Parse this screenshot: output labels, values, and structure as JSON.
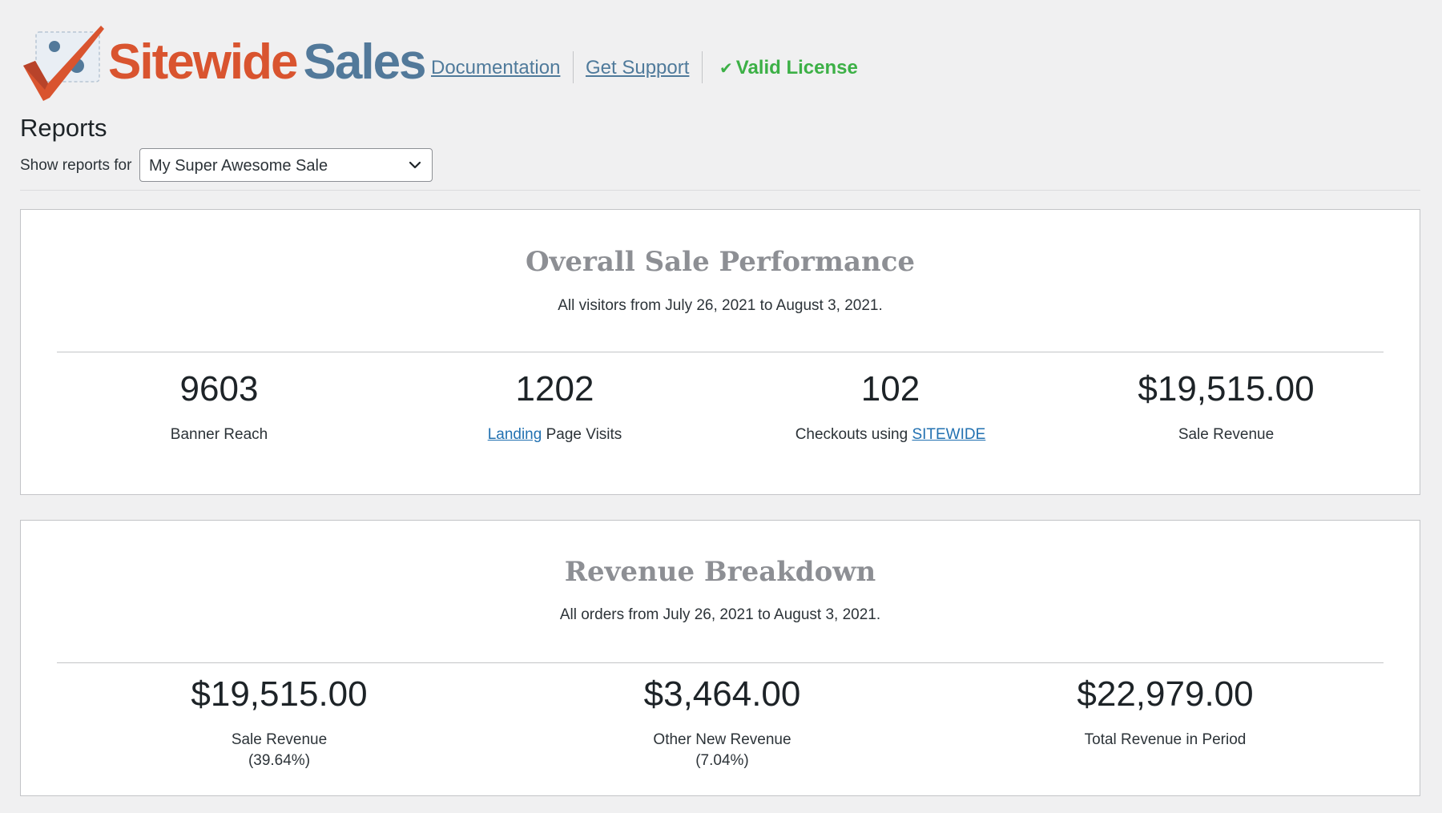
{
  "header": {
    "logo": {
      "icon": "checkmark-logo-icon",
      "word1": "Sitewide",
      "word2": "Sales"
    },
    "links": {
      "documentation": "Documentation",
      "support": "Get Support"
    },
    "license": {
      "icon": "checkmark-icon",
      "label": "Valid License"
    }
  },
  "page": {
    "title": "Reports",
    "filter_label": "Show reports for",
    "selected_sale": "My Super Awesome Sale"
  },
  "overall": {
    "title": "Overall Sale Performance",
    "subtitle": "All visitors from July 26, 2021 to August 3, 2021.",
    "stats": [
      {
        "value": "9603",
        "label": "Banner Reach"
      },
      {
        "value": "1202",
        "link": "Landing",
        "label": " Page Visits"
      },
      {
        "value": "102",
        "label": "Checkouts using ",
        "link": "SITEWIDE"
      },
      {
        "value": "$19,515.00",
        "label": "Sale Revenue"
      }
    ]
  },
  "revenue": {
    "title": "Revenue Breakdown",
    "subtitle": "All orders from July 26, 2021 to August 3, 2021.",
    "stats": [
      {
        "value": "$19,515.00",
        "label": "Sale Revenue",
        "pct": "(39.64%)"
      },
      {
        "value": "$3,464.00",
        "label": "Other New Revenue",
        "pct": "(7.04%)"
      },
      {
        "value": "$22,979.00",
        "label": "Total Revenue in Period"
      }
    ]
  },
  "colors": {
    "background": "#f0f0f1",
    "logo_red": "#d9542f",
    "logo_blue": "#52799a",
    "license_green": "#3cb046",
    "link_blue": "#2271b1"
  }
}
